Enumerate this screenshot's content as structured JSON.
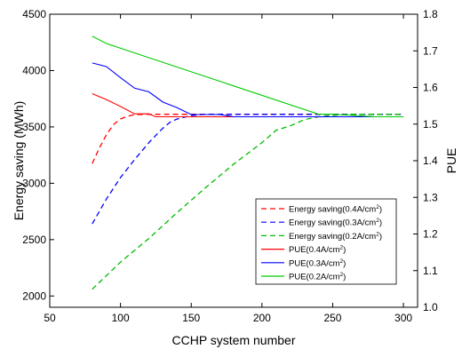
{
  "chart_data": {
    "type": "line",
    "xlabel": "CCHP system number",
    "ylabel_left": "Energy saving (MWh)",
    "ylabel_right": "PUE",
    "xlim": [
      50,
      310
    ],
    "ylim_left": [
      1900,
      4500
    ],
    "ylim_right": [
      1.0,
      1.8
    ],
    "x_ticks": [
      50,
      100,
      150,
      200,
      250,
      300
    ],
    "y_ticks_left": [
      2000,
      2500,
      3000,
      3500,
      4000,
      4500
    ],
    "y_ticks_right": [
      1.0,
      1.1,
      1.2,
      1.3,
      1.4,
      1.5,
      1.6,
      1.7,
      1.8
    ],
    "y_ticks_right_labels": [
      "1.0",
      "1.1",
      "1.2",
      "1.3",
      "1.4",
      "1.5",
      "1.6",
      "1.7",
      "1.8"
    ],
    "grid": false,
    "legend_position": "bottom-right",
    "series": [
      {
        "name": "Energy saving(0.4A/cm",
        "name_sup": "2",
        "name_tail": ")",
        "axis": "left",
        "color": "#ff0000",
        "dash": true,
        "x": [
          80,
          85,
          90,
          95,
          100,
          105,
          110,
          120,
          130,
          300
        ],
        "y": [
          3175,
          3310,
          3430,
          3520,
          3570,
          3595,
          3610,
          3612,
          3612,
          3612
        ]
      },
      {
        "name": "Energy saving(0.3A/cm",
        "name_sup": "2",
        "name_tail": ")",
        "axis": "left",
        "color": "#0000ff",
        "dash": true,
        "x": [
          80,
          90,
          100,
          110,
          120,
          130,
          135,
          140,
          150,
          160,
          300
        ],
        "y": [
          2640,
          2860,
          3050,
          3210,
          3360,
          3490,
          3540,
          3570,
          3600,
          3612,
          3612
        ]
      },
      {
        "name": "Energy saving(0.2A/cm",
        "name_sup": "2",
        "name_tail": ")",
        "axis": "left",
        "color": "#00bb00",
        "dash": true,
        "x": [
          80,
          100,
          120,
          140,
          160,
          180,
          200,
          210,
          220,
          230,
          240,
          260,
          300
        ],
        "y": [
          2060,
          2300,
          2510,
          2740,
          2960,
          3170,
          3360,
          3470,
          3510,
          3565,
          3590,
          3612,
          3612
        ]
      },
      {
        "name": "PUE(0.4A/cm",
        "name_sup": "2",
        "name_tail": ")",
        "axis": "right",
        "color": "#ff0000",
        "dash": false,
        "x": [
          80,
          90,
          100,
          110,
          120,
          125,
          130,
          300
        ],
        "y": [
          1.583,
          1.567,
          1.548,
          1.528,
          1.528,
          1.52,
          1.52,
          1.52
        ]
      },
      {
        "name": "PUE(0.3A/cm",
        "name_sup": "2",
        "name_tail": ")",
        "axis": "right",
        "color": "#0000ff",
        "dash": false,
        "x": [
          80,
          90,
          100,
          110,
          120,
          130,
          140,
          150,
          170,
          180,
          300
        ],
        "y": [
          1.667,
          1.657,
          1.627,
          1.598,
          1.588,
          1.56,
          1.545,
          1.526,
          1.526,
          1.52,
          1.52
        ]
      },
      {
        "name": "PUE(0.2A/cm",
        "name_sup": "2",
        "name_tail": ")",
        "axis": "right",
        "color": "#00cc00",
        "dash": false,
        "x": [
          80,
          90,
          240,
          250,
          280,
          300
        ],
        "y": [
          1.74,
          1.72,
          1.527,
          1.527,
          1.52,
          1.52
        ]
      }
    ]
  }
}
